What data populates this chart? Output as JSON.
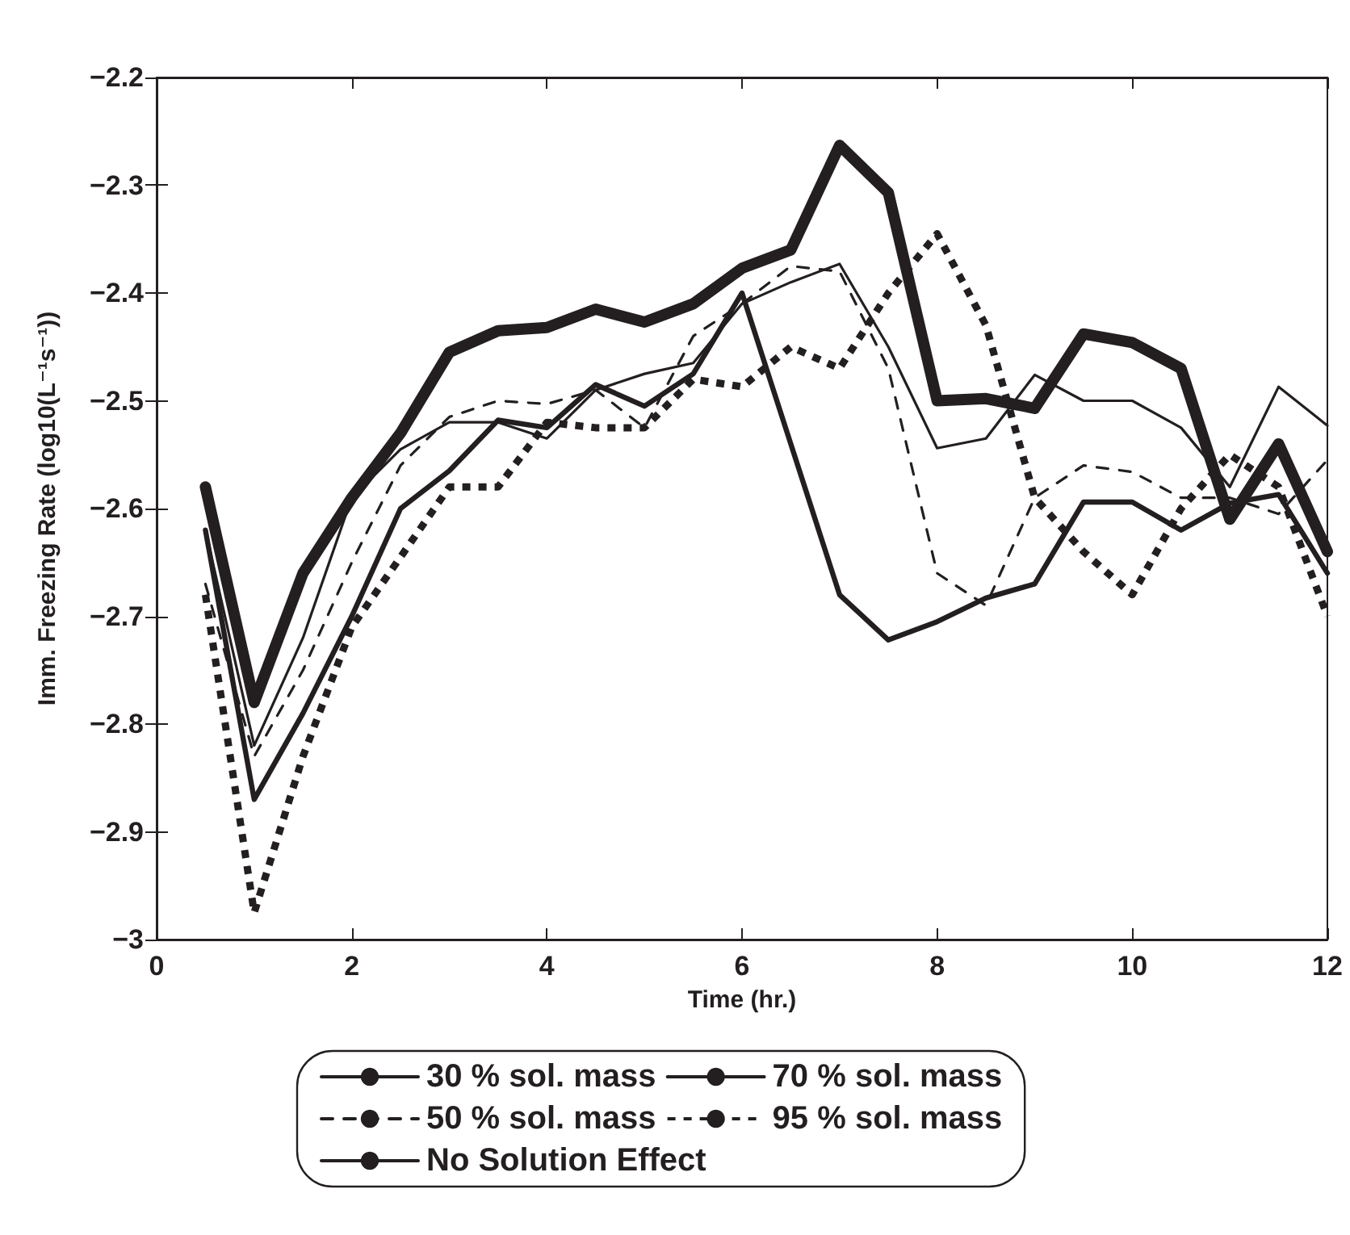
{
  "chart_data": {
    "type": "line",
    "xlabel": "Time (hr.)",
    "ylabel": "Imm. Freezing Rate (log10(L⁻¹s⁻¹))",
    "x": [
      0.5,
      1,
      1.5,
      2,
      2.5,
      3,
      3.5,
      4,
      4.5,
      5,
      5.5,
      6,
      6.5,
      7,
      7.5,
      8,
      8.5,
      9,
      9.5,
      10,
      10.5,
      11,
      11.5,
      12
    ],
    "xlim": [
      0,
      12
    ],
    "xticks": [
      0,
      2,
      4,
      6,
      8,
      10,
      12
    ],
    "ylim": [
      -3,
      -2.2
    ],
    "yticks": [
      {
        "value": -3,
        "label": "−3"
      },
      {
        "value": -2.9,
        "label": "−2.9"
      },
      {
        "value": -2.8,
        "label": "−2.8"
      },
      {
        "value": -2.7,
        "label": "−2.7"
      },
      {
        "value": -2.6,
        "label": "−2.6"
      },
      {
        "value": -2.5,
        "label": "−2.5"
      },
      {
        "value": -2.4,
        "label": "−2.4"
      },
      {
        "value": -2.3,
        "label": "−2.3"
      },
      {
        "value": -2.2,
        "label": "−2.2"
      }
    ],
    "grid": false,
    "legend": "bottom",
    "marker": "none",
    "series": [
      {
        "name": "30 % sol. mass",
        "color": "#231f20",
        "line_style": "solid",
        "values": [
          -2.62,
          -2.82,
          -2.72,
          -2.59,
          -2.545,
          -2.52,
          -2.52,
          -2.535,
          -2.49,
          -2.475,
          -2.465,
          -2.41,
          -2.39,
          -2.373,
          -2.45,
          -2.544,
          -2.535,
          -2.476,
          -2.5,
          -2.5,
          -2.525,
          -2.58,
          -2.487,
          -2.523
        ]
      },
      {
        "name": "70 % sol. mass",
        "color": "#231f20",
        "line_style": "solid",
        "values": [
          -2.62,
          -2.87,
          -2.79,
          -2.7,
          -2.6,
          -2.565,
          -2.518,
          -2.525,
          -2.485,
          -2.505,
          -2.475,
          -2.4,
          -2.54,
          -2.68,
          -2.722,
          -2.705,
          -2.683,
          -2.67,
          -2.594,
          -2.594,
          -2.62,
          -2.595,
          -2.587,
          -2.66
        ]
      },
      {
        "name": "50 % sol. mass",
        "color": "#231f20",
        "line_style": "dashed",
        "values": [
          -2.67,
          -2.83,
          -2.75,
          -2.65,
          -2.56,
          -2.515,
          -2.5,
          -2.503,
          -2.49,
          -2.525,
          -2.44,
          -2.41,
          -2.375,
          -2.38,
          -2.47,
          -2.66,
          -2.69,
          -2.59,
          -2.56,
          -2.566,
          -2.59,
          -2.59,
          -2.605,
          -2.555
        ]
      },
      {
        "name": "95 % sol. mass",
        "color": "#231f20",
        "line_style": "dotted",
        "values": [
          -2.68,
          -2.975,
          -2.83,
          -2.71,
          -2.645,
          -2.58,
          -2.58,
          -2.52,
          -2.525,
          -2.525,
          -2.48,
          -2.487,
          -2.45,
          -2.47,
          -2.4,
          -2.345,
          -2.43,
          -2.59,
          -2.64,
          -2.68,
          -2.6,
          -2.55,
          -2.58,
          -2.7
        ]
      },
      {
        "name": "No Solution Effect",
        "color": "#231f20",
        "line_style": "solid",
        "values": [
          -2.58,
          -2.78,
          -2.66,
          -2.59,
          -2.53,
          -2.455,
          -2.435,
          -2.432,
          -2.415,
          -2.427,
          -2.41,
          -2.377,
          -2.36,
          -2.263,
          -2.307,
          -2.5,
          -2.498,
          -2.507,
          -2.438,
          -2.446,
          -2.47,
          -2.61,
          -2.54,
          -2.64
        ]
      }
    ]
  }
}
